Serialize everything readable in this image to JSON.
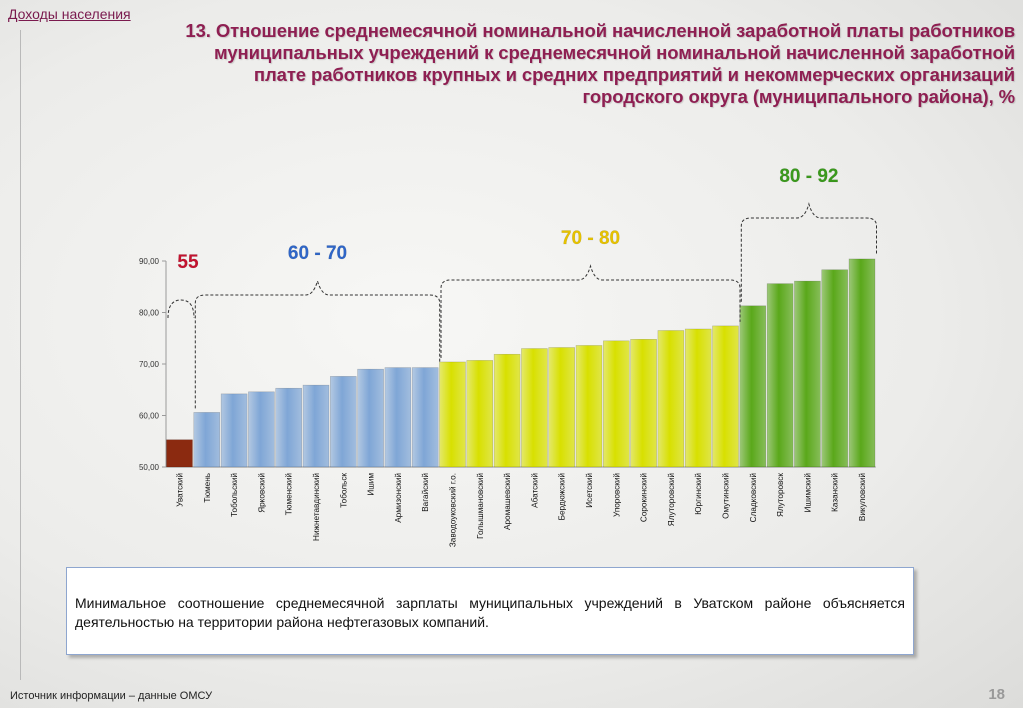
{
  "header": {
    "section": "Доходы населения",
    "title": "13. Отношение среднемесячной номинальной начисленной заработной платы работников муниципальных учреждений к среднемесячной номинальной начисленной заработной плате работников крупных и средних предприятий и некоммерческих организаций городского округа (муниципального района), %"
  },
  "chart_data": {
    "type": "bar",
    "categories": [
      "Уватский",
      "Тюмень",
      "Тобольский",
      "Ярковский",
      "Тюменский",
      "Нижнетавдинский",
      "Тобольск",
      "Ишим",
      "Армизонский",
      "Вагайский",
      "Заводоуковский г.о.",
      "Голышмановский",
      "Аромашевский",
      "Абатский",
      "Бердюжский",
      "Исетский",
      "Упоровский",
      "Сорокинский",
      "Ялуторовский",
      "Юргинский",
      "Омутинский",
      "Сладковский",
      "Ялуторовск",
      "Ишимский",
      "Казанский",
      "Викуловский"
    ],
    "values": [
      55.3,
      60.6,
      64.2,
      64.6,
      65.3,
      65.9,
      67.6,
      69.0,
      69.3,
      69.3,
      70.4,
      70.7,
      71.9,
      73.0,
      73.2,
      73.6,
      74.5,
      74.8,
      76.5,
      76.8,
      77.4,
      81.3,
      85.6,
      86.1,
      88.3,
      90.4
    ],
    "ylim": [
      50,
      90
    ],
    "yticks": [
      "50,00",
      "60,00",
      "70,00",
      "80,00",
      "90,00"
    ],
    "groups": [
      {
        "label": "55",
        "color": "#c4122f",
        "bar_color": "#8b2a10",
        "from": 0,
        "to": 0
      },
      {
        "label": "60 - 70",
        "color": "#2f66c8",
        "bar_color": "#7fa6d6",
        "from": 1,
        "to": 9
      },
      {
        "label": "70 - 80",
        "color": "#e6c200",
        "bar_color": "#d8e000",
        "from": 10,
        "to": 20
      },
      {
        "label": "80 - 92",
        "color": "#3a9a1c",
        "bar_color": "#5aa81a",
        "from": 21,
        "to": 25
      }
    ]
  },
  "note": {
    "text": "Минимальное соотношение среднемесячной зарплаты муниципальных учреждений в Уватском районе объясняется деятельностью на территории района нефтегазовых компаний."
  },
  "footer": {
    "source": "Источник информации – данные ОМСУ",
    "page": "18"
  }
}
